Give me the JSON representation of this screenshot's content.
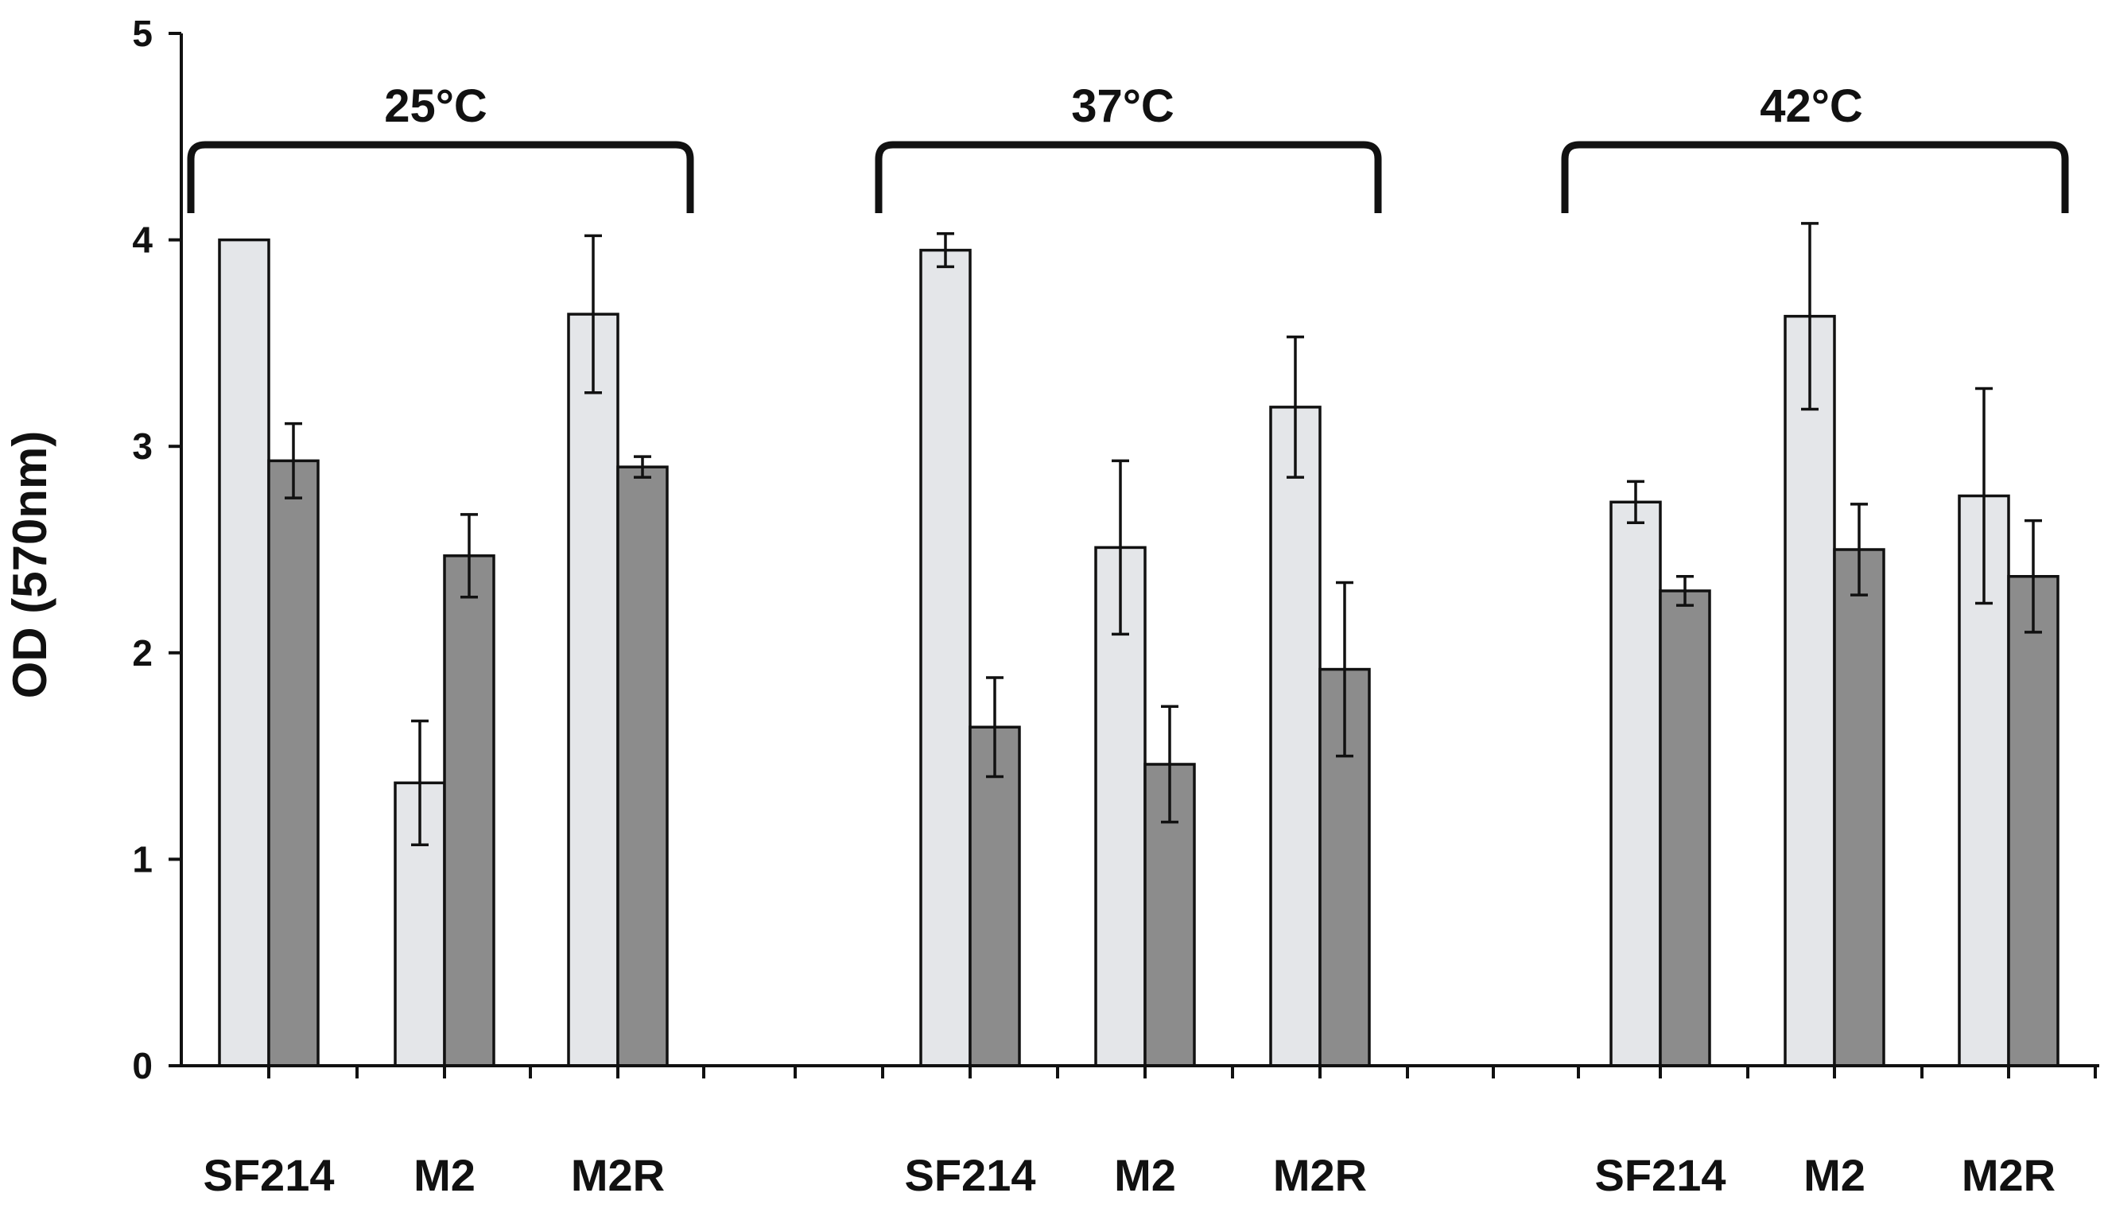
{
  "chart_data": {
    "type": "bar",
    "ylabel": "OD (570nm)",
    "ylim": [
      0,
      5
    ],
    "y_ticks": [
      "0",
      "1",
      "2",
      "3",
      "4",
      "5"
    ],
    "grid": false,
    "legend": "none",
    "colors": {
      "light_bar": "#e4e6e9",
      "dark_bar": "#8c8c8c",
      "outline": "#111111"
    },
    "groups": [
      {
        "label": "25°C",
        "categories": [
          {
            "label": "SF214",
            "light": {
              "value": 4.0,
              "err": 0
            },
            "dark": {
              "value": 2.93,
              "err": 0.18
            }
          },
          {
            "label": "M2",
            "light": {
              "value": 1.37,
              "err": 0.3
            },
            "dark": {
              "value": 2.47,
              "err": 0.2
            }
          },
          {
            "label": "M2R",
            "light": {
              "value": 3.64,
              "err": 0.38
            },
            "dark": {
              "value": 2.9,
              "err": 0.05
            }
          }
        ]
      },
      {
        "label": "37°C",
        "categories": [
          {
            "label": "SF214",
            "light": {
              "value": 3.95,
              "err": 0.08
            },
            "dark": {
              "value": 1.64,
              "err": 0.24
            }
          },
          {
            "label": "M2",
            "light": {
              "value": 2.51,
              "err": 0.42
            },
            "dark": {
              "value": 1.46,
              "err": 0.28
            }
          },
          {
            "label": "M2R",
            "light": {
              "value": 3.19,
              "err": 0.34
            },
            "dark": {
              "value": 1.92,
              "err": 0.42
            }
          }
        ]
      },
      {
        "label": "42°C",
        "categories": [
          {
            "label": "SF214",
            "light": {
              "value": 2.73,
              "err": 0.1
            },
            "dark": {
              "value": 2.3,
              "err": 0.07
            }
          },
          {
            "label": "M2",
            "light": {
              "value": 3.63,
              "err": 0.45
            },
            "dark": {
              "value": 2.5,
              "err": 0.22
            }
          },
          {
            "label": "M2R",
            "light": {
              "value": 2.76,
              "err": 0.52
            },
            "dark": {
              "value": 2.37,
              "err": 0.27
            }
          }
        ]
      }
    ]
  }
}
